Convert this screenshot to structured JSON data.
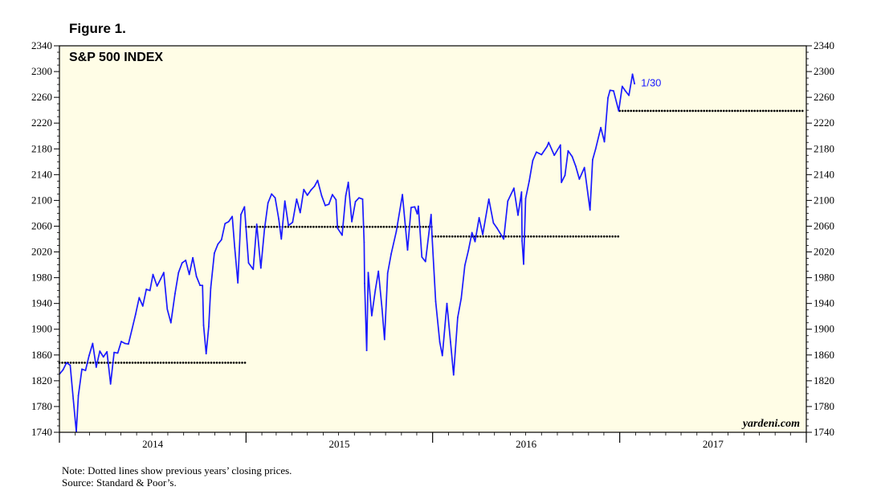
{
  "figure_label": "Figure 1.",
  "notes": {
    "note": "Note: Dotted lines show previous years’ closing prices.",
    "source": "Source: Standard & Poor’s."
  },
  "watermark": "yardeni.com",
  "colors": {
    "background": "#fffde6",
    "series": "#1a1aff",
    "reference": "#000000"
  },
  "chart_data": {
    "type": "line",
    "title": "S&P 500 INDEX",
    "xlabel": "",
    "ylabel": "",
    "ylim": [
      1740,
      2340
    ],
    "yticks": [
      1740,
      1780,
      1820,
      1860,
      1900,
      1940,
      1980,
      2020,
      2060,
      2100,
      2140,
      2180,
      2220,
      2260,
      2300,
      2340
    ],
    "x_range": [
      "2014-01-01",
      "2017-12-31"
    ],
    "year_labels": [
      "2014",
      "2015",
      "2016",
      "2017"
    ],
    "grid": false,
    "end_annotation": "1/30",
    "series": [
      {
        "values": [
          [
            "2014-01-02",
            1831
          ],
          [
            "2014-01-08",
            1837
          ],
          [
            "2014-01-15",
            1848
          ],
          [
            "2014-01-22",
            1844
          ],
          [
            "2014-01-28",
            1792
          ],
          [
            "2014-02-03",
            1741
          ],
          [
            "2014-02-07",
            1797
          ],
          [
            "2014-02-14",
            1838
          ],
          [
            "2014-02-21",
            1836
          ],
          [
            "2014-02-28",
            1859
          ],
          [
            "2014-03-07",
            1878
          ],
          [
            "2014-03-14",
            1841
          ],
          [
            "2014-03-21",
            1866
          ],
          [
            "2014-03-28",
            1857
          ],
          [
            "2014-04-04",
            1865
          ],
          [
            "2014-04-11",
            1815
          ],
          [
            "2014-04-18",
            1864
          ],
          [
            "2014-04-25",
            1863
          ],
          [
            "2014-05-02",
            1881
          ],
          [
            "2014-05-09",
            1878
          ],
          [
            "2014-05-16",
            1877
          ],
          [
            "2014-05-23",
            1900
          ],
          [
            "2014-05-30",
            1923
          ],
          [
            "2014-06-06",
            1949
          ],
          [
            "2014-06-13",
            1936
          ],
          [
            "2014-06-20",
            1962
          ],
          [
            "2014-06-27",
            1960
          ],
          [
            "2014-07-03",
            1985
          ],
          [
            "2014-07-11",
            1967
          ],
          [
            "2014-07-18",
            1978
          ],
          [
            "2014-07-24",
            1988
          ],
          [
            "2014-07-31",
            1931
          ],
          [
            "2014-08-07",
            1910
          ],
          [
            "2014-08-15",
            1955
          ],
          [
            "2014-08-22",
            1988
          ],
          [
            "2014-08-29",
            2003
          ],
          [
            "2014-09-05",
            2007
          ],
          [
            "2014-09-12",
            1985
          ],
          [
            "2014-09-19",
            2011
          ],
          [
            "2014-09-26",
            1982
          ],
          [
            "2014-10-03",
            1968
          ],
          [
            "2014-10-08",
            1968
          ],
          [
            "2014-10-10",
            1906
          ],
          [
            "2014-10-15",
            1862
          ],
          [
            "2014-10-20",
            1904
          ],
          [
            "2014-10-24",
            1964
          ],
          [
            "2014-10-31",
            2018
          ],
          [
            "2014-11-07",
            2032
          ],
          [
            "2014-11-14",
            2039
          ],
          [
            "2014-11-21",
            2064
          ],
          [
            "2014-11-28",
            2067
          ],
          [
            "2014-12-05",
            2075
          ],
          [
            "2014-12-10",
            2026
          ],
          [
            "2014-12-16",
            1972
          ],
          [
            "2014-12-22",
            2078
          ],
          [
            "2014-12-29",
            2090
          ],
          [
            "2015-01-06",
            2003
          ],
          [
            "2015-01-15",
            1993
          ],
          [
            "2015-01-22",
            2063
          ],
          [
            "2015-01-30",
            1995
          ],
          [
            "2015-02-06",
            2055
          ],
          [
            "2015-02-13",
            2096
          ],
          [
            "2015-02-20",
            2110
          ],
          [
            "2015-02-27",
            2104
          ],
          [
            "2015-03-06",
            2071
          ],
          [
            "2015-03-11",
            2040
          ],
          [
            "2015-03-18",
            2099
          ],
          [
            "2015-03-25",
            2061
          ],
          [
            "2015-04-02",
            2066
          ],
          [
            "2015-04-10",
            2102
          ],
          [
            "2015-04-17",
            2081
          ],
          [
            "2015-04-24",
            2117
          ],
          [
            "2015-05-01",
            2108
          ],
          [
            "2015-05-08",
            2116
          ],
          [
            "2015-05-15",
            2122
          ],
          [
            "2015-05-21",
            2131
          ],
          [
            "2015-05-29",
            2107
          ],
          [
            "2015-06-05",
            2092
          ],
          [
            "2015-06-12",
            2094
          ],
          [
            "2015-06-19",
            2109
          ],
          [
            "2015-06-26",
            2101
          ],
          [
            "2015-06-29",
            2057
          ],
          [
            "2015-07-08",
            2046
          ],
          [
            "2015-07-15",
            2107
          ],
          [
            "2015-07-20",
            2128
          ],
          [
            "2015-07-27",
            2067
          ],
          [
            "2015-08-03",
            2098
          ],
          [
            "2015-08-10",
            2104
          ],
          [
            "2015-08-17",
            2102
          ],
          [
            "2015-08-20",
            2035
          ],
          [
            "2015-08-21",
            1971
          ],
          [
            "2015-08-25",
            1867
          ],
          [
            "2015-08-28",
            1988
          ],
          [
            "2015-09-04",
            1921
          ],
          [
            "2015-09-11",
            1961
          ],
          [
            "2015-09-17",
            1990
          ],
          [
            "2015-09-24",
            1932
          ],
          [
            "2015-09-29",
            1884
          ],
          [
            "2015-10-05",
            1987
          ],
          [
            "2015-10-12",
            2017
          ],
          [
            "2015-10-22",
            2052
          ],
          [
            "2015-11-03",
            2109
          ],
          [
            "2015-11-13",
            2023
          ],
          [
            "2015-11-20",
            2089
          ],
          [
            "2015-11-27",
            2090
          ],
          [
            "2015-12-02",
            2079
          ],
          [
            "2015-12-04",
            2091
          ],
          [
            "2015-12-11",
            2012
          ],
          [
            "2015-12-18",
            2005
          ],
          [
            "2015-12-29",
            2078
          ],
          [
            "2015-12-31",
            2044
          ],
          [
            "2016-01-07",
            1943
          ],
          [
            "2016-01-15",
            1880
          ],
          [
            "2016-01-20",
            1859
          ],
          [
            "2016-01-29",
            1940
          ],
          [
            "2016-02-05",
            1880
          ],
          [
            "2016-02-11",
            1829
          ],
          [
            "2016-02-19",
            1918
          ],
          [
            "2016-02-26",
            1948
          ],
          [
            "2016-03-04",
            1999
          ],
          [
            "2016-03-11",
            2022
          ],
          [
            "2016-03-18",
            2050
          ],
          [
            "2016-03-24",
            2036
          ],
          [
            "2016-04-01",
            2073
          ],
          [
            "2016-04-08",
            2047
          ],
          [
            "2016-04-20",
            2102
          ],
          [
            "2016-04-29",
            2065
          ],
          [
            "2016-05-06",
            2057
          ],
          [
            "2016-05-19",
            2040
          ],
          [
            "2016-05-27",
            2099
          ],
          [
            "2016-06-08",
            2119
          ],
          [
            "2016-06-16",
            2077
          ],
          [
            "2016-06-23",
            2113
          ],
          [
            "2016-06-24",
            2037
          ],
          [
            "2016-06-27",
            2001
          ],
          [
            "2016-07-01",
            2103
          ],
          [
            "2016-07-08",
            2130
          ],
          [
            "2016-07-15",
            2162
          ],
          [
            "2016-07-22",
            2175
          ],
          [
            "2016-08-01",
            2171
          ],
          [
            "2016-08-12",
            2184
          ],
          [
            "2016-08-15",
            2190
          ],
          [
            "2016-08-26",
            2170
          ],
          [
            "2016-09-07",
            2186
          ],
          [
            "2016-09-09",
            2128
          ],
          [
            "2016-09-16",
            2139
          ],
          [
            "2016-09-22",
            2177
          ],
          [
            "2016-09-30",
            2168
          ],
          [
            "2016-10-07",
            2153
          ],
          [
            "2016-10-14",
            2133
          ],
          [
            "2016-10-24",
            2151
          ],
          [
            "2016-11-04",
            2085
          ],
          [
            "2016-11-09",
            2163
          ],
          [
            "2016-11-15",
            2180
          ],
          [
            "2016-11-25",
            2213
          ],
          [
            "2016-12-02",
            2191
          ],
          [
            "2016-12-09",
            2259
          ],
          [
            "2016-12-13",
            2271
          ],
          [
            "2016-12-20",
            2270
          ],
          [
            "2016-12-30",
            2239
          ],
          [
            "2017-01-06",
            2277
          ],
          [
            "2017-01-12",
            2270
          ],
          [
            "2017-01-19",
            2263
          ],
          [
            "2017-01-26",
            2296
          ],
          [
            "2017-01-30",
            2281
          ]
        ]
      }
    ],
    "reference_lines": [
      {
        "value": 1848,
        "x_start": "2014-01-01",
        "x_end": "2014-12-31"
      },
      {
        "value": 2059,
        "x_start": "2015-01-01",
        "x_end": "2015-12-31"
      },
      {
        "value": 2044,
        "x_start": "2016-01-01",
        "x_end": "2016-12-31"
      },
      {
        "value": 2239,
        "x_start": "2017-01-01",
        "x_end": "2017-12-31"
      }
    ]
  }
}
